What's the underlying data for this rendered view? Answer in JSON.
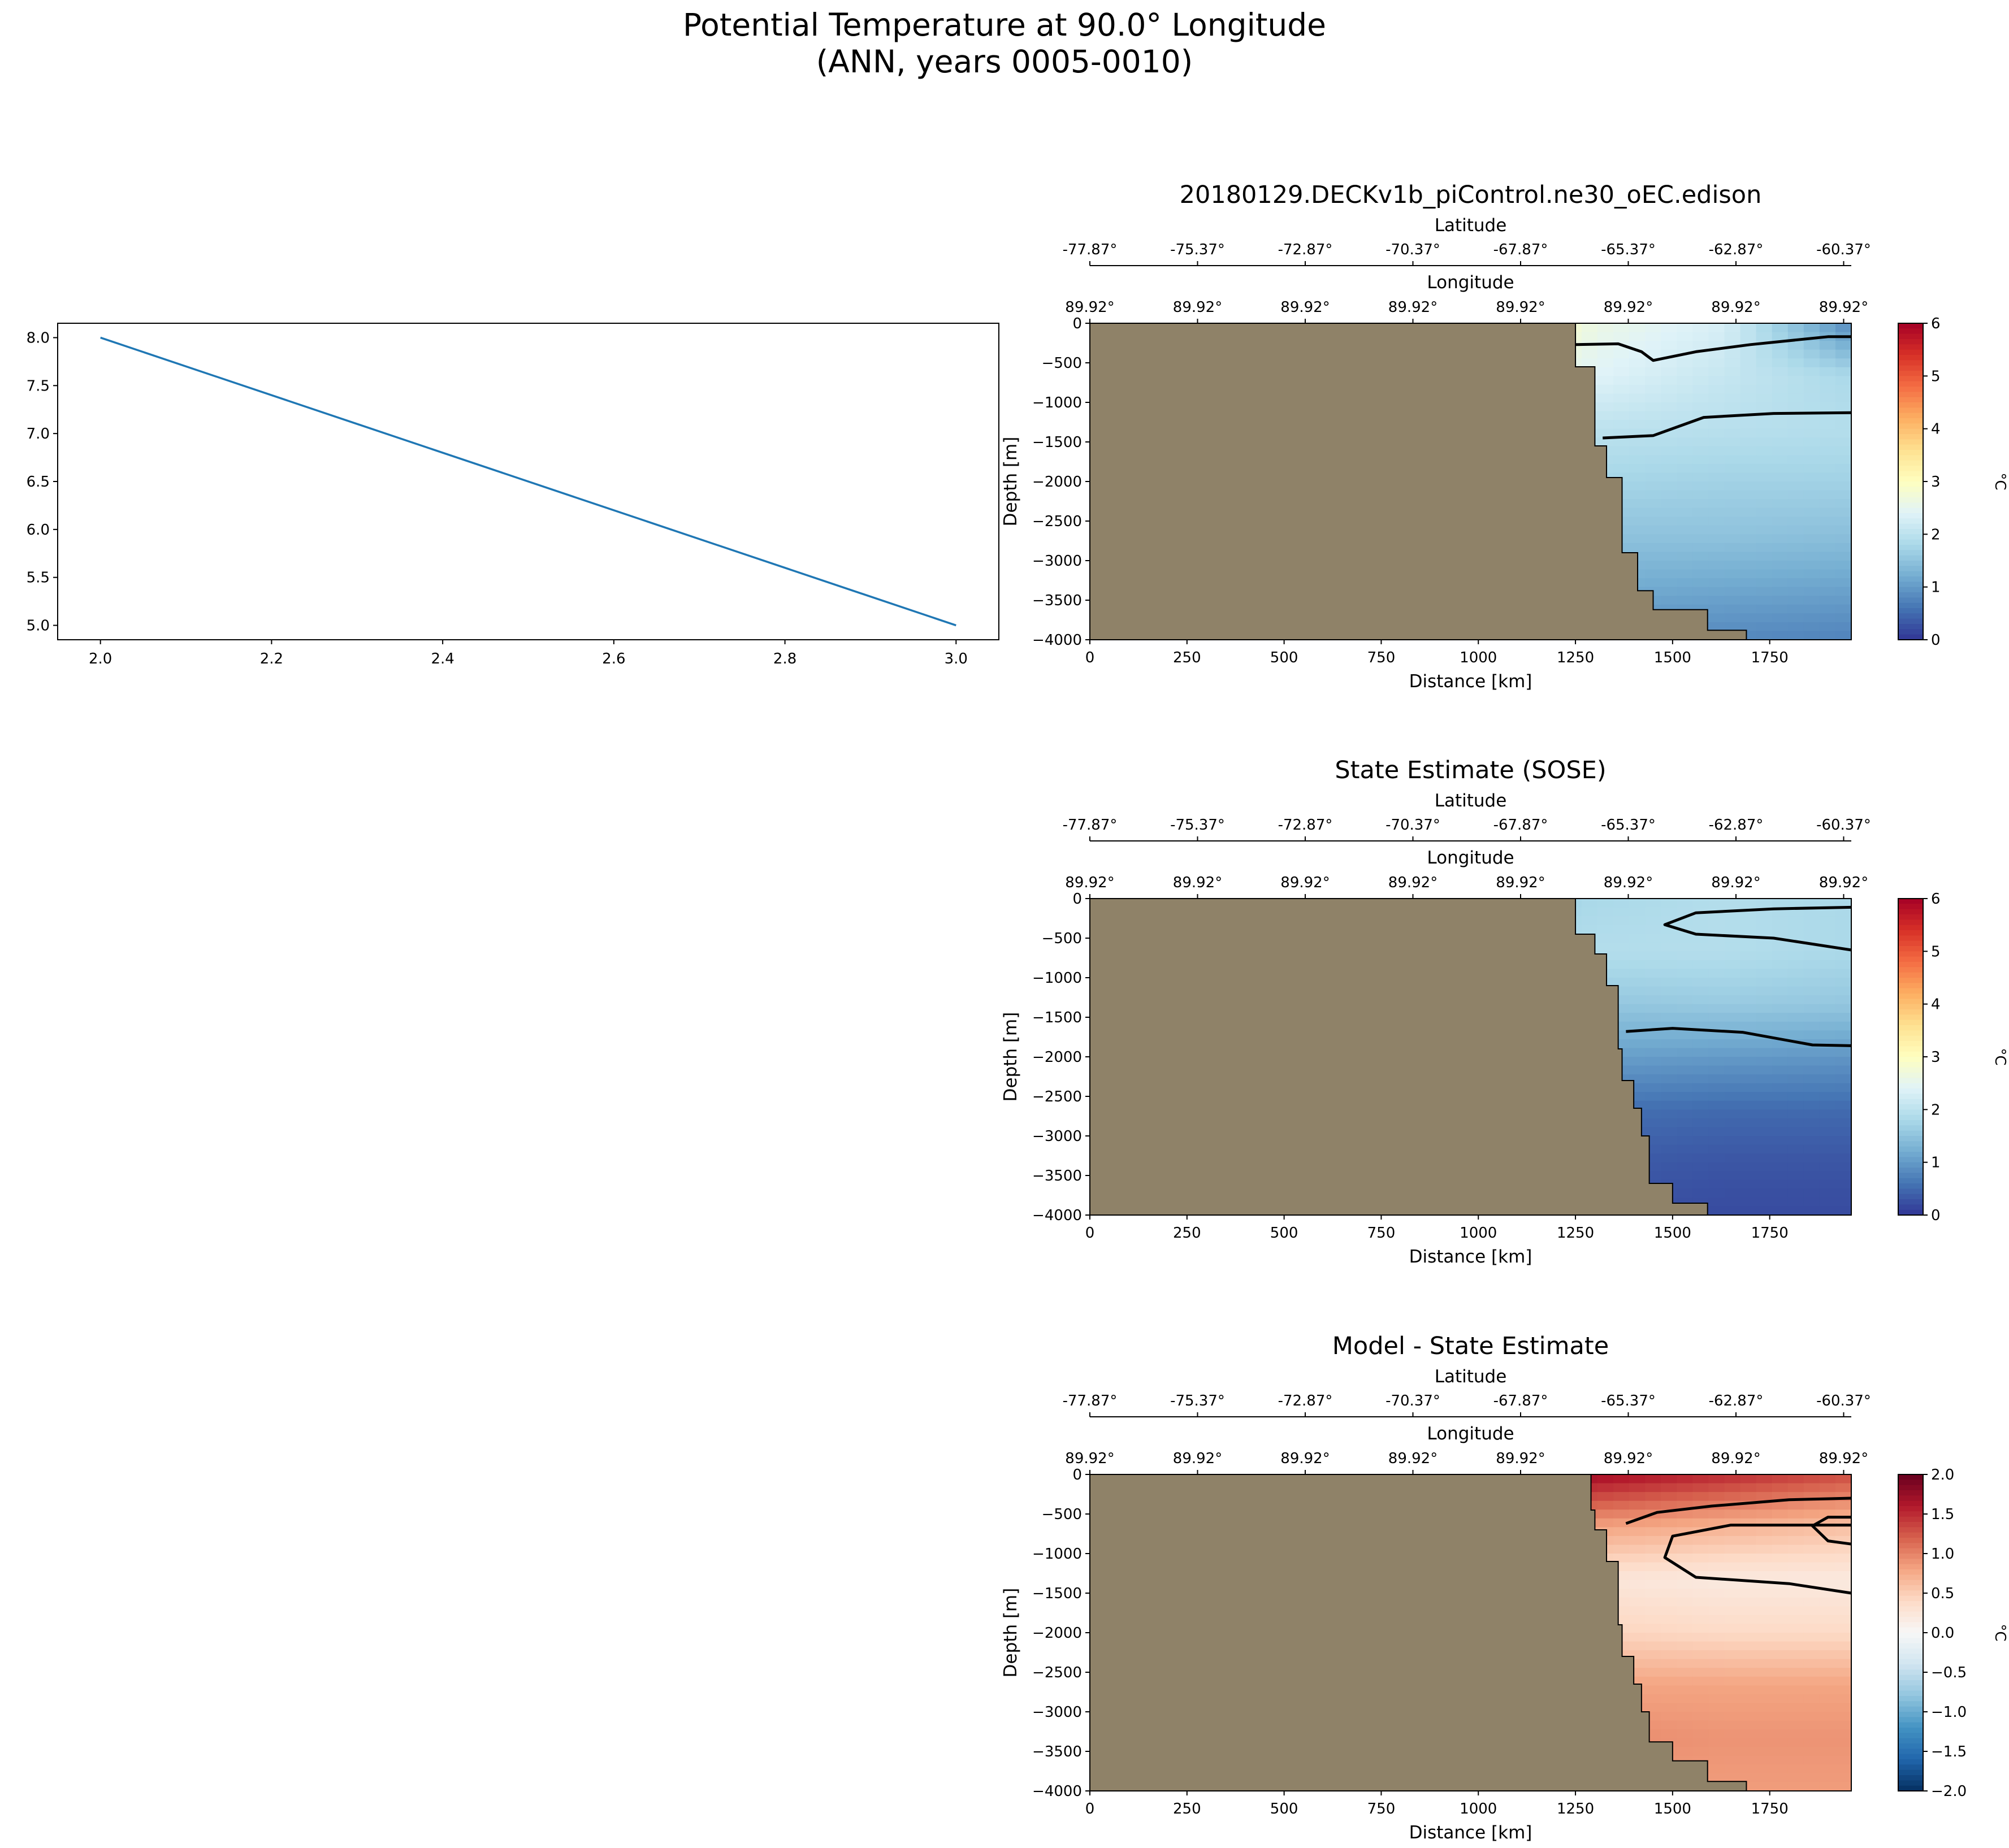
{
  "figure": {
    "title_line1": "Potential Temperature at 90.0° Longitude",
    "title_line2": "(ANN, years 0005-0010)"
  },
  "colors": {
    "land": "#8f8268",
    "line": "#1f77b4",
    "rdylbu_r": [
      "#313695",
      "#4575b4",
      "#74add1",
      "#abd9e9",
      "#e0f3f8",
      "#ffffbf",
      "#fee090",
      "#fdae61",
      "#f46d43",
      "#d73027",
      "#a50026"
    ],
    "rdbu_r": [
      "#053061",
      "#2166ac",
      "#4393c3",
      "#92c5de",
      "#d1e5f0",
      "#f7f7f7",
      "#fddbc7",
      "#f4a582",
      "#d6604d",
      "#b2182b",
      "#67001f"
    ]
  },
  "chart_data": [
    {
      "id": "line",
      "type": "line",
      "x": [
        2.0,
        3.0
      ],
      "y": [
        8.0,
        5.0
      ],
      "xlim": [
        1.95,
        3.05
      ],
      "ylim": [
        4.85,
        8.15
      ],
      "xticks": [
        "2.0",
        "2.2",
        "2.4",
        "2.6",
        "2.8",
        "3.0"
      ],
      "yticks": [
        "5.0",
        "5.5",
        "6.0",
        "6.5",
        "7.0",
        "7.5",
        "8.0"
      ]
    },
    {
      "id": "model",
      "type": "heatmap",
      "title": "20180129.DECKv1b_piControl.ne30_oEC.edison",
      "xlabel": "Distance [km]",
      "ylabel": "Depth [m]",
      "lat_label": "Latitude",
      "lon_label": "Longitude",
      "xticks": [
        "0",
        "250",
        "500",
        "750",
        "1000",
        "1250",
        "1500",
        "1750"
      ],
      "yticks": [
        "0",
        "−500",
        "−1000",
        "−1500",
        "−2000",
        "−2500",
        "−3000",
        "−3500",
        "−4000"
      ],
      "lat_ticks": [
        "-77.87°",
        "-75.37°",
        "-72.87°",
        "-70.37°",
        "-67.87°",
        "-65.37°",
        "-62.87°",
        "-60.37°"
      ],
      "lon_ticks": [
        "89.92°",
        "89.92°",
        "89.92°",
        "89.92°",
        "89.92°",
        "89.92°",
        "89.92°",
        "89.92°"
      ],
      "xlim": [
        0,
        1960
      ],
      "ylim": [
        -4000,
        0
      ],
      "colorbar": {
        "label": "°C",
        "ticks": [
          "0",
          "1",
          "2",
          "3",
          "4",
          "5",
          "6"
        ],
        "range": [
          0,
          6
        ]
      },
      "bottom_km": [
        [
          1250,
          0
        ],
        [
          1250,
          -500
        ],
        [
          1300,
          -550
        ],
        [
          1330,
          -1550
        ],
        [
          1370,
          -1950
        ],
        [
          1410,
          -2900
        ],
        [
          1450,
          -3380
        ],
        [
          1590,
          -3620
        ],
        [
          1690,
          -3880
        ],
        [
          1860,
          -4000
        ]
      ],
      "contours": [
        [
          [
            1250,
            -270
          ],
          [
            1360,
            -260
          ],
          [
            1420,
            -360
          ],
          [
            1450,
            -470
          ],
          [
            1560,
            -360
          ],
          [
            1700,
            -270
          ],
          [
            1900,
            -170
          ],
          [
            1960,
            -170
          ]
        ],
        [
          [
            1320,
            -1450
          ],
          [
            1450,
            -1420
          ],
          [
            1580,
            -1190
          ],
          [
            1760,
            -1140
          ],
          [
            1960,
            -1130
          ]
        ]
      ]
    },
    {
      "id": "sose",
      "type": "heatmap",
      "title": "State Estimate (SOSE)",
      "xlabel": "Distance [km]",
      "ylabel": "Depth [m]",
      "lat_label": "Latitude",
      "lon_label": "Longitude",
      "xticks": [
        "0",
        "250",
        "500",
        "750",
        "1000",
        "1250",
        "1500",
        "1750"
      ],
      "yticks": [
        "0",
        "−500",
        "−1000",
        "−1500",
        "−2000",
        "−2500",
        "−3000",
        "−3500",
        "−4000"
      ],
      "lat_ticks": [
        "-77.87°",
        "-75.37°",
        "-72.87°",
        "-70.37°",
        "-67.87°",
        "-65.37°",
        "-62.87°",
        "-60.37°"
      ],
      "lon_ticks": [
        "89.92°",
        "89.92°",
        "89.92°",
        "89.92°",
        "89.92°",
        "89.92°",
        "89.92°",
        "89.92°"
      ],
      "xlim": [
        0,
        1960
      ],
      "ylim": [
        -4000,
        0
      ],
      "colorbar": {
        "label": "°C",
        "ticks": [
          "0",
          "1",
          "2",
          "3",
          "4",
          "5",
          "6"
        ],
        "range": [
          0,
          6
        ]
      },
      "bottom_km": [
        [
          1250,
          0
        ],
        [
          1300,
          -450
        ],
        [
          1330,
          -700
        ],
        [
          1360,
          -1100
        ],
        [
          1370,
          -1900
        ],
        [
          1400,
          -2300
        ],
        [
          1420,
          -2650
        ],
        [
          1440,
          -3000
        ],
        [
          1500,
          -3600
        ],
        [
          1590,
          -3850
        ],
        [
          1720,
          -4000
        ]
      ],
      "contours": [
        [
          [
            1960,
            -650
          ],
          [
            1760,
            -500
          ],
          [
            1560,
            -450
          ],
          [
            1480,
            -330
          ],
          [
            1560,
            -180
          ],
          [
            1760,
            -130
          ],
          [
            1960,
            -110
          ]
        ],
        [
          [
            1380,
            -1680
          ],
          [
            1500,
            -1640
          ],
          [
            1680,
            -1690
          ],
          [
            1860,
            -1850
          ],
          [
            1960,
            -1860
          ]
        ]
      ]
    },
    {
      "id": "diff",
      "type": "heatmap",
      "title": "Model - State Estimate",
      "xlabel": "Distance [km]",
      "ylabel": "Depth [m]",
      "lat_label": "Latitude",
      "lon_label": "Longitude",
      "xticks": [
        "0",
        "250",
        "500",
        "750",
        "1000",
        "1250",
        "1500",
        "1750"
      ],
      "yticks": [
        "0",
        "−500",
        "−1000",
        "−1500",
        "−2000",
        "−2500",
        "−3000",
        "−3500",
        "−4000"
      ],
      "lat_ticks": [
        "-77.87°",
        "-75.37°",
        "-72.87°",
        "-70.37°",
        "-67.87°",
        "-65.37°",
        "-62.87°",
        "-60.37°"
      ],
      "lon_ticks": [
        "89.92°",
        "89.92°",
        "89.92°",
        "89.92°",
        "89.92°",
        "89.92°",
        "89.92°",
        "89.92°"
      ],
      "xlim": [
        0,
        1960
      ],
      "ylim": [
        -4000,
        0
      ],
      "colorbar": {
        "label": "°C",
        "ticks": [
          "−2.0",
          "−1.5",
          "−1.0",
          "−0.5",
          "0.0",
          "0.5",
          "1.0",
          "1.5",
          "2.0"
        ],
        "range": [
          -2,
          2
        ]
      },
      "bottom_km": [
        [
          1290,
          0
        ],
        [
          1300,
          -450
        ],
        [
          1330,
          -700
        ],
        [
          1360,
          -1100
        ],
        [
          1370,
          -1900
        ],
        [
          1400,
          -2300
        ],
        [
          1420,
          -2650
        ],
        [
          1440,
          -3000
        ],
        [
          1500,
          -3380
        ],
        [
          1590,
          -3620
        ],
        [
          1690,
          -3880
        ],
        [
          1860,
          -4000
        ]
      ],
      "contours": [
        [
          [
            1380,
            -620
          ],
          [
            1460,
            -480
          ],
          [
            1600,
            -400
          ],
          [
            1800,
            -320
          ],
          [
            1960,
            -300
          ]
        ],
        [
          [
            1960,
            -1500
          ],
          [
            1800,
            -1380
          ],
          [
            1560,
            -1300
          ],
          [
            1480,
            -1050
          ],
          [
            1500,
            -780
          ],
          [
            1650,
            -640
          ],
          [
            1960,
            -640
          ]
        ],
        [
          [
            1960,
            -880
          ],
          [
            1900,
            -840
          ],
          [
            1860,
            -650
          ],
          [
            1900,
            -540
          ],
          [
            1960,
            -540
          ]
        ]
      ]
    }
  ]
}
